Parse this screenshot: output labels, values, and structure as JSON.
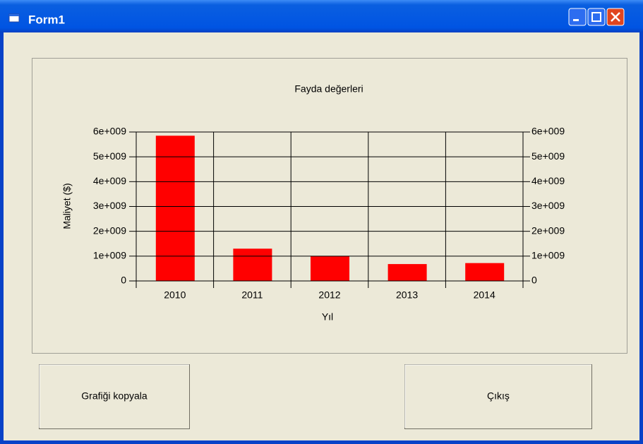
{
  "window": {
    "title": "Form1"
  },
  "buttons": [
    "Grafiği kopyala",
    "Çıkış"
  ],
  "chart_data": {
    "type": "bar",
    "title": "Fayda değerleri",
    "x_label": "Yıl",
    "y_label": "Maliyet ($)",
    "categories": [
      "2010",
      "2011",
      "2012",
      "2013",
      "2014"
    ],
    "values": [
      5850000000,
      1300000000,
      1000000000,
      680000000,
      720000000
    ],
    "color": "#ff0000",
    "ylim": [
      0,
      6000000000
    ],
    "yticks": [
      0,
      {
        "value": 1000000000,
        "label": "1e+009"
      },
      {
        "value": 2000000000,
        "label": "2e+009"
      },
      {
        "value": 3000000000,
        "label": "3e+009"
      },
      {
        "value": 4000000000,
        "label": "4e+009"
      },
      {
        "value": 5000000000,
        "label": "5e+009"
      },
      {
        "value": 6000000000,
        "label": "6e+009"
      }
    ],
    "y2lim": [
      0,
      6000000000
    ],
    "y2ticks": [
      0,
      {
        "value": 1000000000,
        "label": "1e+009"
      },
      {
        "value": 2000000000,
        "label": "2e+009"
      },
      {
        "value": 3000000000,
        "label": "3e+009"
      },
      {
        "value": 4000000000,
        "label": "4e+009"
      },
      {
        "value": 5000000000,
        "label": "5e+009"
      },
      {
        "value": 6000000000,
        "label": "6e+009"
      }
    ],
    "grid": true
  }
}
